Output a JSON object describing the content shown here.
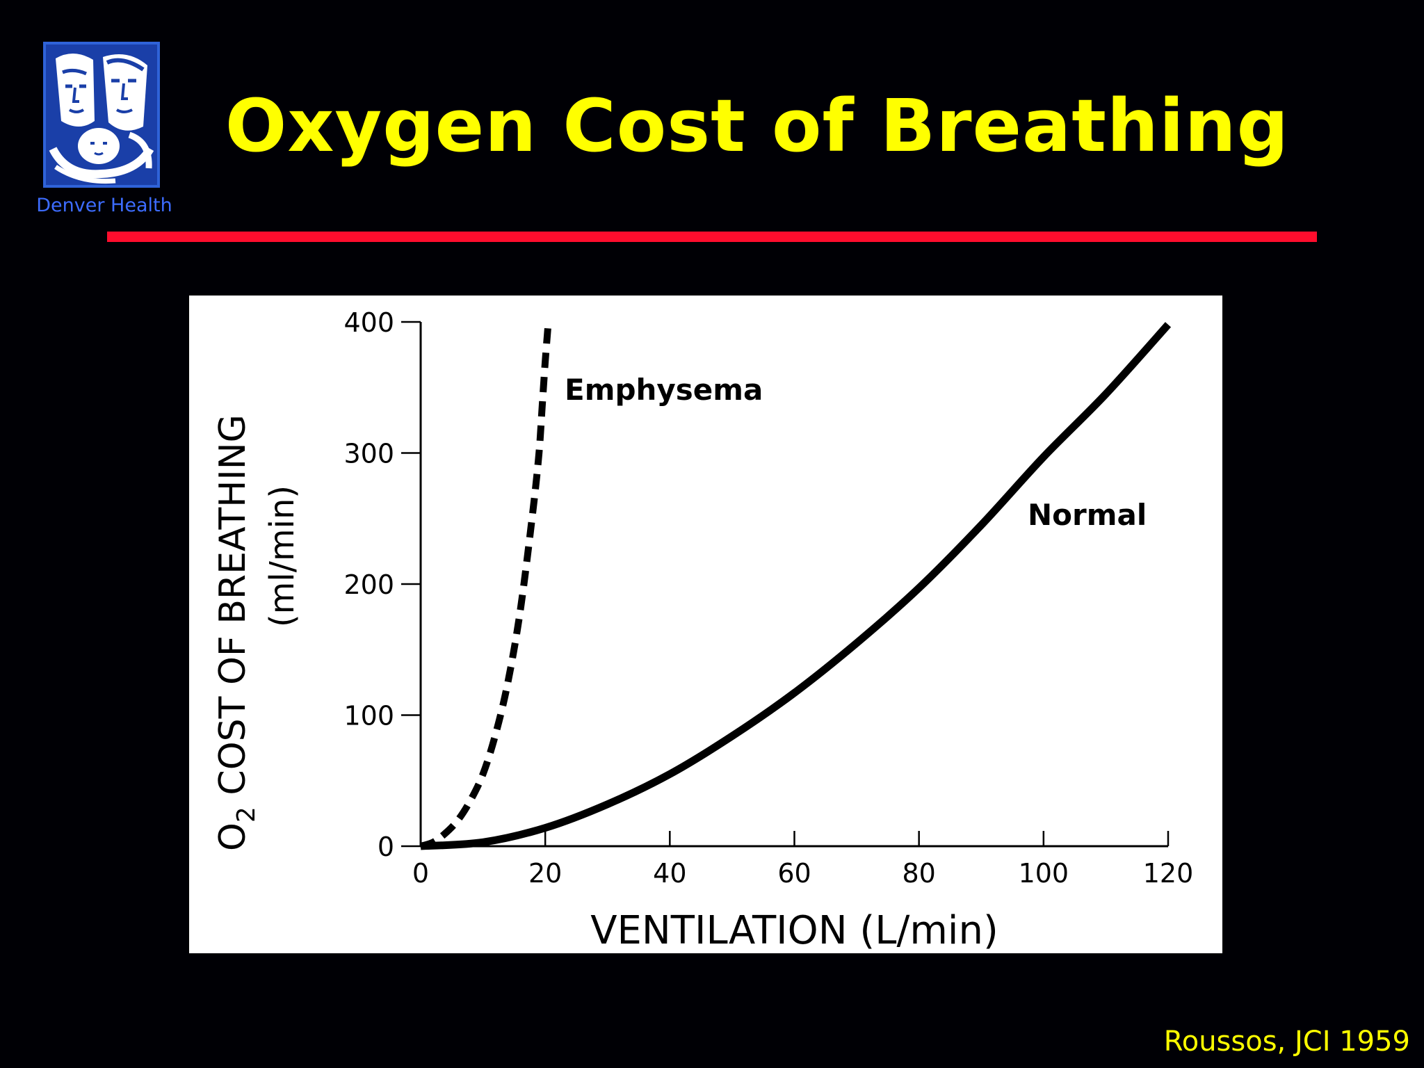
{
  "slide": {
    "title": "Oxygen Cost of Breathing",
    "logo_caption": "Denver Health",
    "citation": "Roussos, JCI 1959",
    "colors": {
      "background": "#000005",
      "title": "#ffff00",
      "rule": "#ff0d2d",
      "logo_caption": "#3d6cff",
      "citation": "#ffff00"
    },
    "logo_icon": "family-portrait-logo-icon"
  },
  "chart_data": {
    "type": "line",
    "xlabel": "VENTILATION (L/min)",
    "ylabel_main": "COST OF BREATHING",
    "ylabel_prefix": "O",
    "ylabel_subscript": "2",
    "ylabel_units": "(ml/min)",
    "xlim": [
      0,
      120
    ],
    "ylim": [
      0,
      400
    ],
    "x_ticks": [
      0,
      20,
      40,
      60,
      80,
      100,
      120
    ],
    "y_ticks": [
      0,
      100,
      200,
      300,
      400
    ],
    "grid": false,
    "legend": "none",
    "series": [
      {
        "name": "Emphysema",
        "style": "dashed",
        "x": [
          0,
          2,
          4,
          6,
          8,
          10,
          12,
          14,
          16,
          18,
          19,
          19.5,
          20,
          20.5
        ],
        "y": [
          0,
          3,
          10,
          20,
          35,
          55,
          85,
          125,
          180,
          255,
          300,
          335,
          370,
          400
        ]
      },
      {
        "name": "Normal",
        "style": "solid",
        "x": [
          0,
          10,
          20,
          30,
          40,
          50,
          60,
          70,
          80,
          90,
          100,
          110,
          120
        ],
        "y": [
          0,
          3,
          14,
          32,
          55,
          84,
          117,
          155,
          197,
          245,
          297,
          345,
          398
        ]
      }
    ]
  }
}
